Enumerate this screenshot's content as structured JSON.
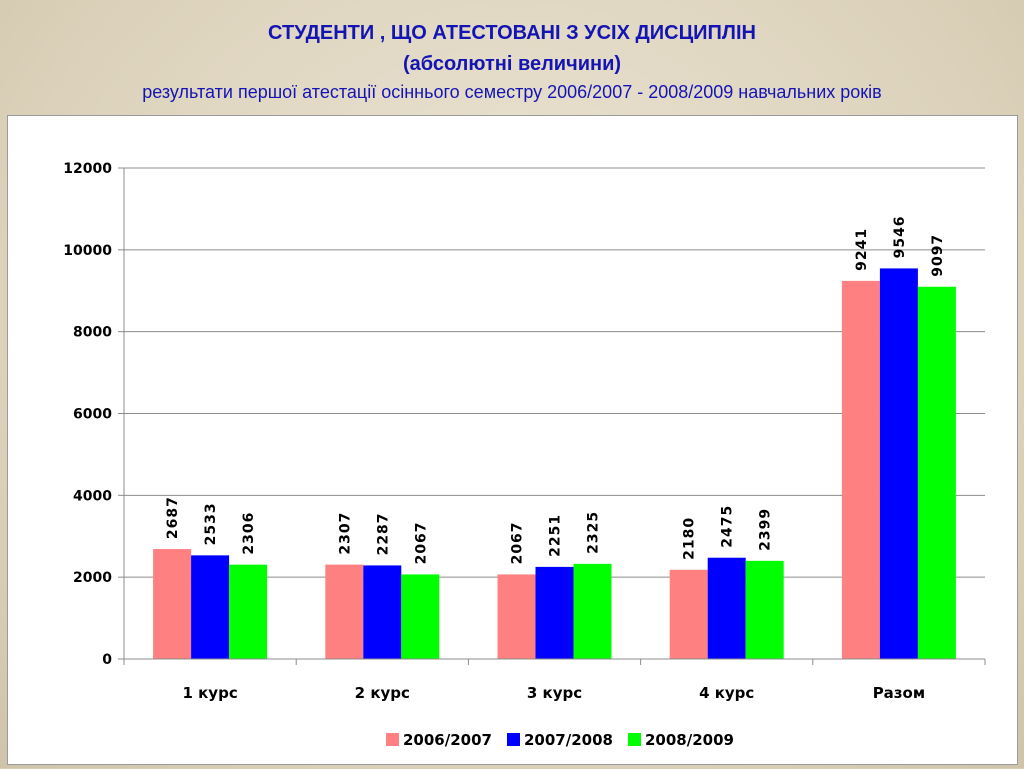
{
  "page": {
    "title": "СТУДЕНТИ , ЩО АТЕСТОВАНІ З УСІХ ДИСЦИПЛІН",
    "subtitle": "(абсолютні величини)",
    "description": "результати першої атестації осіннього семестру 2006/2007 - 2008/2009 навчальних років"
  },
  "colors": {
    "title": "#1414b4",
    "series": [
      "#ff8080",
      "#0000ff",
      "#00ff00"
    ]
  },
  "chart_data": {
    "type": "bar",
    "categories": [
      "1 курс",
      "2 курс",
      "3 курс",
      "4 курс",
      "Разом"
    ],
    "series": [
      {
        "name": "2006/2007",
        "values": [
          2687,
          2307,
          2067,
          2180,
          9241
        ]
      },
      {
        "name": "2007/2008",
        "values": [
          2533,
          2287,
          2251,
          2475,
          9546
        ]
      },
      {
        "name": "2008/2009",
        "values": [
          2306,
          2067,
          2325,
          2399,
          9097
        ]
      }
    ],
    "yticks": [
      0,
      2000,
      4000,
      6000,
      8000,
      10000,
      12000
    ],
    "ylim": [
      0,
      12000
    ],
    "grid": true,
    "legend": "bottom",
    "data_labels": true
  }
}
